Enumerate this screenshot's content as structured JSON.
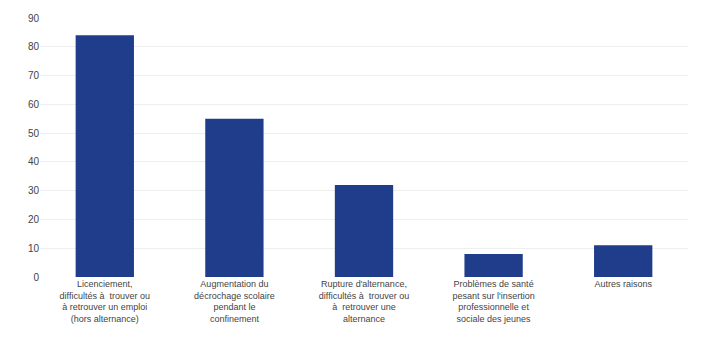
{
  "chart_data": {
    "type": "bar",
    "categories": [
      "Licenciement,\ndifficultés à  trouver ou\nà retrouver un emploi\n(hors alternance)",
      "Augmentation du\ndécrochage scolaire\npendant le\nconfinement",
      "Rupture d'alternance,\ndifficultés à  trouver ou\nà  retrouver une\nalternance",
      "Problèmes de santé\npesant sur l'insertion\nprofessionnelle et\nsociale des jeunes",
      "Autres raisons"
    ],
    "values": [
      84,
      55,
      32,
      8,
      11
    ],
    "color": "#1f3d8a",
    "ylim": [
      0,
      90
    ],
    "yticks": [
      0,
      10,
      20,
      30,
      40,
      50,
      60,
      70,
      80,
      90
    ],
    "grid": true
  }
}
